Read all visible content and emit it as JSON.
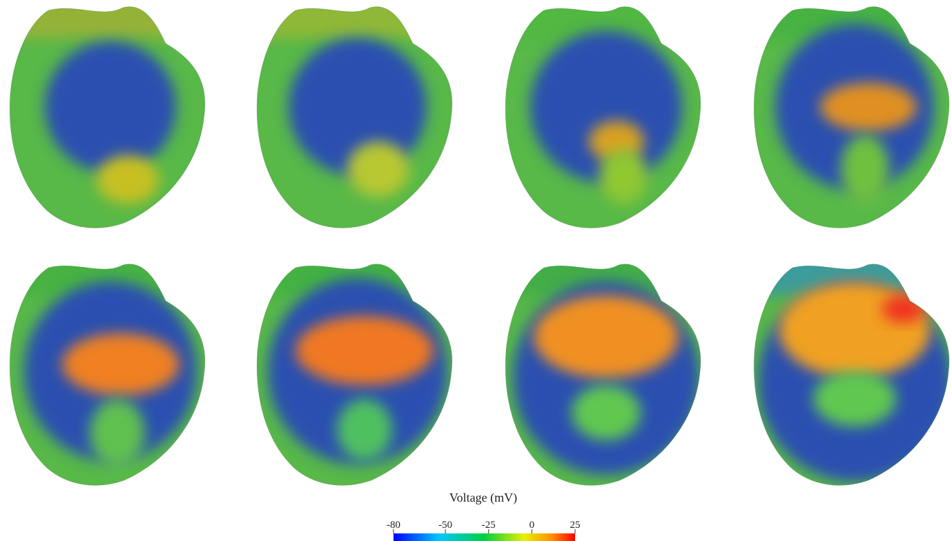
{
  "colorbar": {
    "title": "Voltage (mV)",
    "lim": [
      -80,
      25
    ],
    "ticks": [
      -80,
      -50,
      -25,
      0,
      25
    ]
  }
}
